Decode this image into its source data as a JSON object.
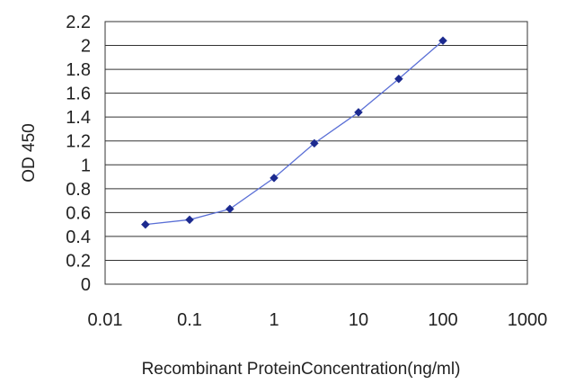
{
  "chart_data": {
    "type": "line",
    "xlabel": "Recombinant ProteinConcentration(ng/ml)",
    "ylabel": "OD 450",
    "xscale": "log",
    "xlim": [
      0.01,
      1000
    ],
    "ylim": [
      0,
      2.2
    ],
    "x_ticks": [
      "0.01",
      "0.1",
      "1",
      "10",
      "100",
      "1000"
    ],
    "y_ticks": [
      "0",
      "0.2",
      "0.4",
      "0.6",
      "0.8",
      "1",
      "1.2",
      "1.4",
      "1.6",
      "1.8",
      "2",
      "2.2"
    ],
    "grid": "horizontal",
    "legend": "none",
    "series": [
      {
        "x": [
          0.03,
          0.1,
          0.3,
          1,
          3,
          10,
          30,
          100
        ],
        "y": [
          0.5,
          0.54,
          0.63,
          0.89,
          1.18,
          1.44,
          1.72,
          2.04
        ],
        "color": "#1c2a8f",
        "line_color": "#5a6fd6",
        "marker": "diamond"
      }
    ]
  }
}
